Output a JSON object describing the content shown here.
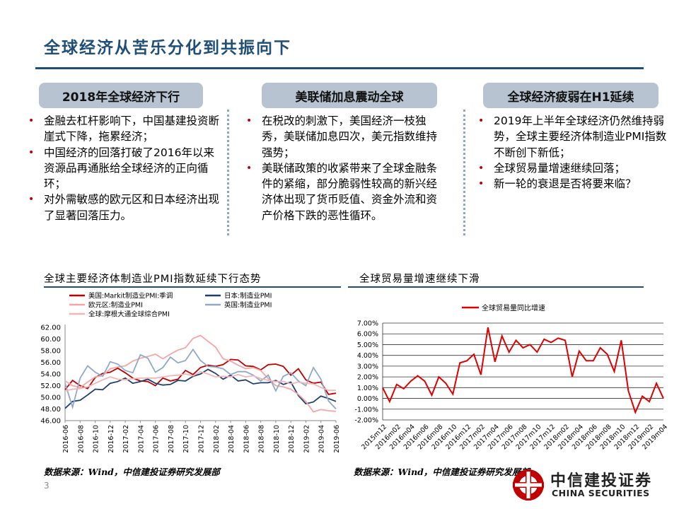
{
  "slide": {
    "title": "全球经济从苦乐分化到共振向下",
    "page_number": "3"
  },
  "columns": [
    {
      "heading": "2018年全球经济下行",
      "bullets": [
        "金融去杠杆影响下，中国基建投资断崖式下降，拖累经济；",
        "中国经济的回落打破了2016年以来资源品再通胀给全球经济的正向循环；",
        "对外需敏感的欧元区和日本经济出现了显著回落压力。"
      ]
    },
    {
      "heading": "美联储加息震动全球",
      "bullets": [
        "在税改的刺激下，美国经济一枝独秀，美联储加息四次，美元指数维持强势；",
        "美联储政策的收紧带来了全球金融条件的紧缩，部分脆弱性较高的新兴经济体出现了货币贬值、资金外流和资产价格下跌的恶性循环。"
      ]
    },
    {
      "heading": "全球经济疲弱在H1延续",
      "bullets": [
        "2019年上半年全球经济仍然维持弱势，全球主要经济体制造业PMI指数不断创下新低；",
        "全球贸易量增速继续回落；",
        "新一轮的衰退是否将要来临？"
      ]
    }
  ],
  "charts": {
    "left_title": "全球主要经济体制造业PMI指数延续下行态势",
    "right_title": "全球贸易量增速继续下滑",
    "left_source": "数据来源：Wind，中信建投证券研究发展部",
    "right_source": "数据来源：Wind，中信建投证券研究发展部"
  },
  "logo": {
    "cn": "中信建投证券",
    "en": "CHINA SECURITIES"
  },
  "colors": {
    "title_blue": "#1f4e79",
    "accent_red": "#c00000",
    "pill_bg": "#b8c3d2"
  },
  "chart_data": [
    {
      "type": "line",
      "title": "全球主要经济体制造业PMI指数延续下行态势",
      "x": [
        "2016-06",
        "2016-07",
        "2016-08",
        "2016-09",
        "2016-10",
        "2016-11",
        "2016-12",
        "2017-01",
        "2017-02",
        "2017-03",
        "2017-04",
        "2017-05",
        "2017-06",
        "2017-07",
        "2017-08",
        "2017-09",
        "2017-10",
        "2017-11",
        "2017-12",
        "2018-01",
        "2018-02",
        "2018-03",
        "2018-04",
        "2018-05",
        "2018-06",
        "2018-07",
        "2018-08",
        "2018-09",
        "2018-10",
        "2018-11",
        "2018-12",
        "2019-01",
        "2019-02",
        "2019-03",
        "2019-04",
        "2019-05",
        "2019-06"
      ],
      "x_tick_labels": [
        "2016-06",
        "2016-08",
        "2016-10",
        "2016-12",
        "2017-02",
        "2017-04",
        "2017-06",
        "2017-08",
        "2017-10",
        "2017-12",
        "2018-02",
        "2018-04",
        "2018-06",
        "2018-08",
        "2018-10",
        "2018-12",
        "2019-02",
        "2019-04",
        "2019-06"
      ],
      "y_tick_labels": [
        "46.00",
        "48.00",
        "50.00",
        "52.00",
        "54.00",
        "56.00",
        "58.00",
        "60.00",
        "62.00"
      ],
      "ylim": [
        46,
        62
      ],
      "legend_position": "top",
      "series": [
        {
          "name": "美国:Markit制造业PMI:季调",
          "color": "#c00000",
          "values": [
            51.3,
            52.9,
            52.0,
            51.5,
            53.4,
            54.1,
            54.3,
            55.0,
            54.2,
            53.3,
            52.8,
            52.7,
            52.0,
            53.3,
            52.8,
            53.1,
            54.6,
            53.9,
            55.1,
            55.5,
            55.3,
            55.6,
            56.5,
            56.4,
            55.4,
            55.3,
            54.7,
            55.6,
            55.7,
            55.3,
            53.8,
            54.9,
            53.0,
            52.4,
            52.6,
            50.5,
            50.7
          ]
        },
        {
          "name": "日本:制造业PMI",
          "color": "#1f3f6e",
          "values": [
            48.1,
            49.3,
            49.5,
            50.4,
            51.4,
            51.3,
            52.4,
            52.7,
            53.3,
            52.4,
            52.7,
            53.1,
            52.4,
            52.1,
            52.2,
            52.9,
            52.8,
            53.6,
            54.0,
            54.8,
            54.1,
            53.1,
            53.8,
            52.8,
            53.0,
            52.3,
            52.5,
            52.5,
            52.9,
            52.2,
            52.6,
            50.3,
            48.9,
            49.2,
            50.2,
            49.8,
            49.3
          ]
        },
        {
          "name": "欧元区:制造业PMI",
          "color": "#f4a5a5",
          "values": [
            52.8,
            52.0,
            51.7,
            52.6,
            53.5,
            53.7,
            54.9,
            55.2,
            55.4,
            56.2,
            56.7,
            57.0,
            57.4,
            56.6,
            57.4,
            58.1,
            58.5,
            60.1,
            60.6,
            59.6,
            58.6,
            56.6,
            56.2,
            55.5,
            54.9,
            55.1,
            54.6,
            53.2,
            52.0,
            51.8,
            51.4,
            50.5,
            49.3,
            47.5,
            47.9,
            47.7,
            47.6
          ]
        },
        {
          "name": "英国:制造业PMI",
          "color": "#8fa9c7",
          "values": [
            52.4,
            48.3,
            53.3,
            55.4,
            54.3,
            53.6,
            56.1,
            55.7,
            54.6,
            54.2,
            57.3,
            56.7,
            54.3,
            55.1,
            56.9,
            55.9,
            56.3,
            58.2,
            56.3,
            55.3,
            55.2,
            54.9,
            53.9,
            54.4,
            54.4,
            53.8,
            52.8,
            53.8,
            51.1,
            53.6,
            54.2,
            52.8,
            52.0,
            55.1,
            53.1,
            49.4,
            48.0
          ]
        },
        {
          "name": "全球:摩根大通全球综合PMI",
          "color": "#f2b6b6",
          "values": [
            51.1,
            51.4,
            51.5,
            51.8,
            52.4,
            53.0,
            53.5,
            53.1,
            53.0,
            53.2,
            53.3,
            53.3,
            53.3,
            53.5,
            53.7,
            53.8,
            54.0,
            53.7,
            54.4,
            54.0,
            53.5,
            53.6,
            53.5,
            53.9,
            53.5,
            53.7,
            53.2,
            52.9,
            52.7,
            52.7,
            52.3,
            52.6,
            52.4,
            52.3,
            51.7,
            51.2,
            51.2
          ]
        }
      ]
    },
    {
      "type": "line",
      "title": "全球贸易量增速继续下滑",
      "x": [
        "2015m12",
        "2016m01",
        "2016m02",
        "2016m03",
        "2016m04",
        "2016m05",
        "2016m06",
        "2016m07",
        "2016m08",
        "2016m09",
        "2016m10",
        "2016m11",
        "2016m12",
        "2017m01",
        "2017m02",
        "2017m03",
        "2017m04",
        "2017m05",
        "2017m06",
        "2017m07",
        "2017m08",
        "2017m09",
        "2017m10",
        "2017m11",
        "2017m12",
        "2018m01",
        "2018m02",
        "2018m03",
        "2018m04",
        "2018m05",
        "2018m06",
        "2018m07",
        "2018m08",
        "2018m09",
        "2018m10",
        "2018m11",
        "2018m12",
        "2019m01",
        "2019m02",
        "2019m03",
        "2019m04"
      ],
      "x_tick_labels": [
        "2015m12",
        "2016m02",
        "2016m04",
        "2016m06",
        "2016m08",
        "2016m10",
        "2016m12",
        "2017m02",
        "2017m04",
        "2017m06",
        "2017m08",
        "2017m10",
        "2017m12",
        "2018m02",
        "2018m04",
        "2018m06",
        "2018m08",
        "2018m10",
        "2018m12",
        "2019m02",
        "2019m04"
      ],
      "y_tick_labels": [
        "-2.00%",
        "-1.00%",
        "0.00%",
        "1.00%",
        "2.00%",
        "3.00%",
        "4.00%",
        "5.00%",
        "6.00%",
        "7.00%"
      ],
      "ylim": [
        -2,
        7
      ],
      "legend_position": "top-left",
      "series": [
        {
          "name": "全球贸易量同比增速",
          "color": "#e00000",
          "values": [
            1.0,
            -0.3,
            1.3,
            0.9,
            1.6,
            2.1,
            1.6,
            0.3,
            2.0,
            1.4,
            0.4,
            3.3,
            3.5,
            4.1,
            2.2,
            6.6,
            3.4,
            5.8,
            4.3,
            5.4,
            4.7,
            5.0,
            4.3,
            5.5,
            5.2,
            5.6,
            5.4,
            2.0,
            4.4,
            3.5,
            3.5,
            4.7,
            4.1,
            2.5,
            5.4,
            0.7,
            -1.3,
            0.2,
            -0.3,
            1.4,
            0.0
          ]
        }
      ]
    }
  ]
}
